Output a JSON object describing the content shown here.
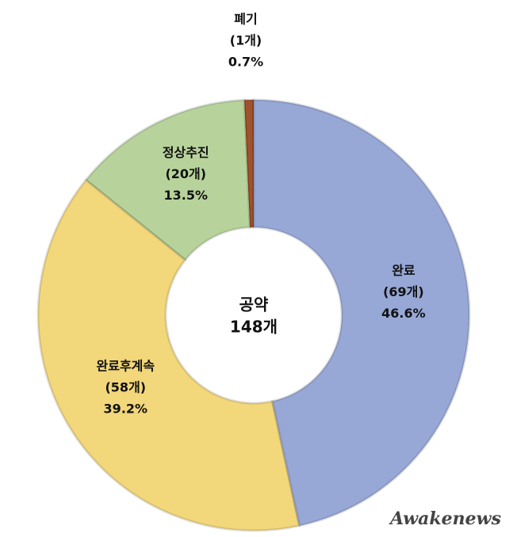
{
  "chart_data": {
    "type": "donut",
    "categories": [
      "완료",
      "완료후계속",
      "정상추진",
      "폐기"
    ],
    "count_labels": [
      "(69개)",
      "(58개)",
      "(20개)",
      "(1개)"
    ],
    "values": [
      46.6,
      39.2,
      13.5,
      0.7
    ],
    "value_labels": [
      "46.6%",
      "39.2%",
      "13.5%",
      "0.7%"
    ],
    "colors": [
      "#97a8d6",
      "#f2d77b",
      "#b7d39b",
      "#a0522d"
    ],
    "center_label": [
      "공약",
      "148개"
    ],
    "watermark": "Awakenews"
  }
}
